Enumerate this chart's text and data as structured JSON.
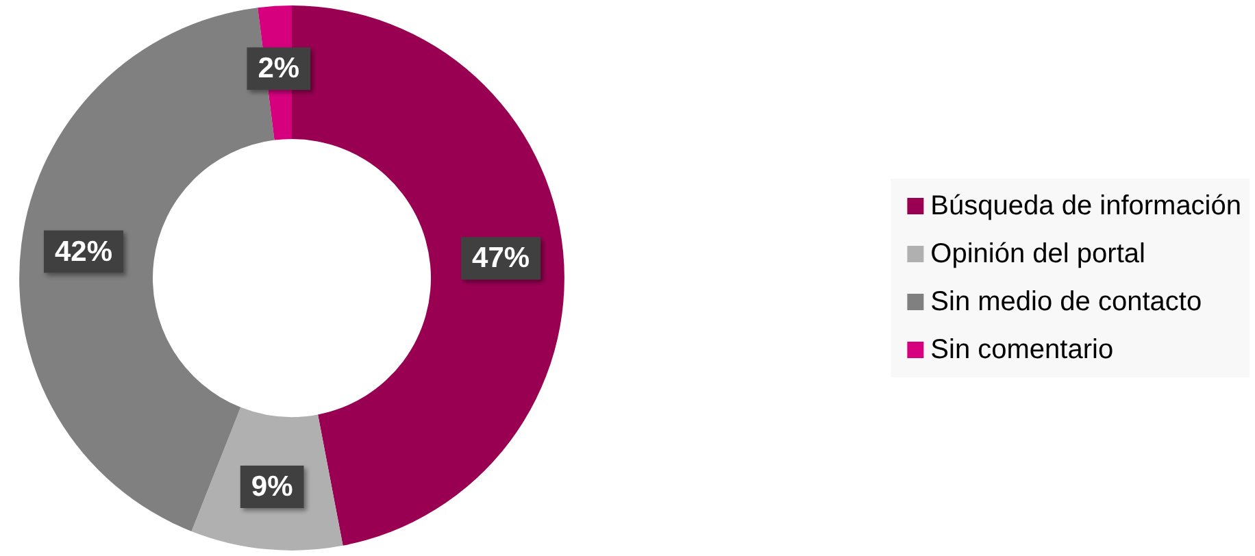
{
  "chart_data": {
    "type": "donut",
    "categories": [
      "Búsqueda de información",
      "Opinión del portal",
      "Sin medio de contacto",
      "Sin comentario"
    ],
    "values": [
      47,
      9,
      42,
      2
    ],
    "colors": [
      "#990052",
      "#b0b0b0",
      "#808080",
      "#d6007f"
    ],
    "value_labels": [
      "47%",
      "9%",
      "42%",
      "2%"
    ],
    "legend": "right"
  }
}
